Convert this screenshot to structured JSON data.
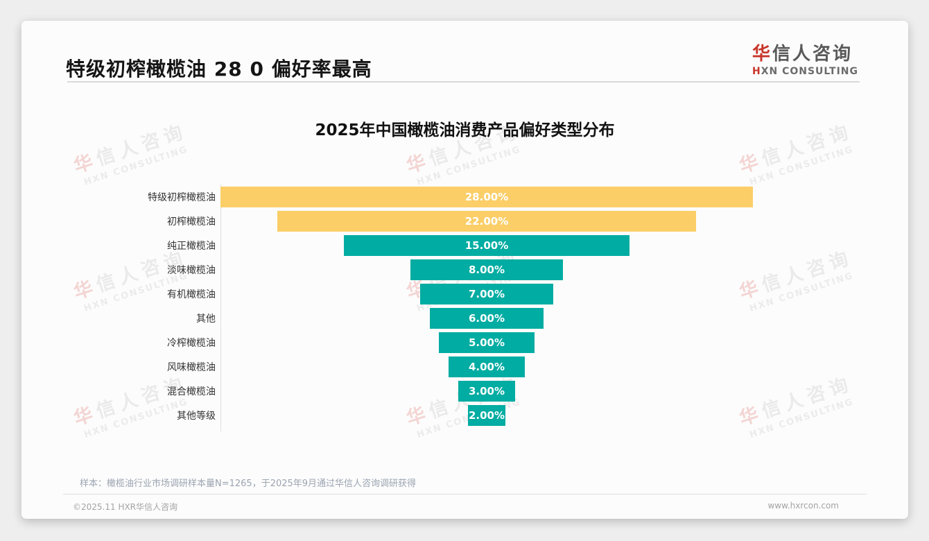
{
  "header": {
    "title": "特级初榨橄榄油 28 0 偏好率最高",
    "logo": {
      "cn_accent": "华",
      "cn_rest": "信人咨询",
      "en_accent": "H",
      "en_rest": "XN CONSULTING"
    }
  },
  "watermark": {
    "line1_accent": "华",
    "line1_rest": "信人咨询",
    "line2": "HXN CONSULTING"
  },
  "chart_data": {
    "type": "bar",
    "variant": "horizontal-centered-funnel",
    "title": "2025年中国橄榄油消费产品偏好类型分布",
    "categories": [
      "特级初榨橄榄油",
      "初榨橄榄油",
      "纯正橄榄油",
      "淡味橄榄油",
      "有机橄榄油",
      "其他",
      "冷榨橄榄油",
      "风味橄榄油",
      "混合橄榄油",
      "其他等级"
    ],
    "values": [
      28,
      22,
      15,
      8,
      7,
      6,
      5,
      4,
      3,
      2
    ],
    "value_labels": [
      "28.00%",
      "22.00%",
      "15.00%",
      "8.00%",
      "7.00%",
      "6.00%",
      "5.00%",
      "4.00%",
      "3.00%",
      "2.00%"
    ],
    "bar_colors": [
      "#FBCE68",
      "#FBCE68",
      "#01ACA2",
      "#01ACA2",
      "#01ACA2",
      "#01ACA2",
      "#01ACA2",
      "#01ACA2",
      "#01ACA2",
      "#01ACA2"
    ],
    "highlight_color": "#FBCE68",
    "base_color": "#01ACA2",
    "value_label_color": "#FFFFFF",
    "xlim": [
      0,
      28
    ],
    "grid": false,
    "legend": false,
    "unit": "%"
  },
  "note": "样本：橄榄油行业市场调研样本量N=1265，于2025年9月通过华信人咨询调研获得",
  "footer": {
    "copyright": "©2025.11 HXR华信人咨询",
    "website": "www.hxrcon.com"
  }
}
